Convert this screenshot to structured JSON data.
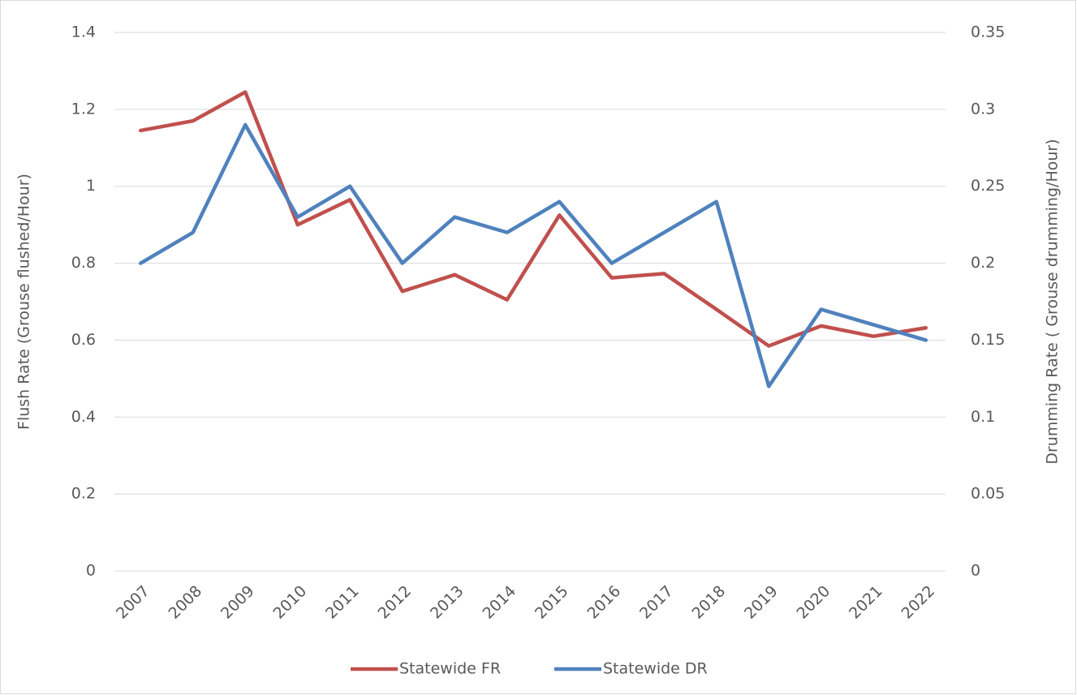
{
  "chart_data": {
    "type": "line",
    "y_label": "Flush Rate (Grouse flushed/Hour)",
    "y2_label": "Drumming Rate ( Grouse drumming/Hour)",
    "categories": [
      "2007",
      "2008",
      "2009",
      "2010",
      "2011",
      "2012",
      "2013",
      "2014",
      "2015",
      "2016",
      "2017",
      "2018",
      "2019",
      "2020",
      "2021",
      "2022"
    ],
    "series": [
      {
        "name": "Statewide FR",
        "color": "#c0504d",
        "values": [
          1.145,
          1.17,
          1.245,
          0.9,
          0.965,
          0.727,
          0.77,
          0.705,
          0.925,
          0.762,
          0.773,
          0.68,
          0.585,
          0.637,
          0.61,
          0.632
        ]
      },
      {
        "name": "Statewide DR",
        "color": "#4f81bd",
        "axis": "y2",
        "values": [
          0.2,
          0.22,
          0.29,
          0.23,
          0.25,
          0.2,
          0.23,
          0.22,
          0.24,
          0.2,
          0.22,
          0.24,
          0.12,
          0.17,
          0.16,
          0.15
        ]
      }
    ],
    "ylim": [
      0,
      1.4
    ],
    "yticks": [
      0,
      0.2,
      0.4,
      0.6,
      0.8,
      1,
      1.2,
      1.4
    ],
    "y2lim": [
      0,
      0.35
    ],
    "y2ticks": [
      0,
      0.05,
      0.1,
      0.15,
      0.2,
      0.25,
      0.3,
      0.35
    ],
    "grid": true,
    "legend": "bottom"
  }
}
